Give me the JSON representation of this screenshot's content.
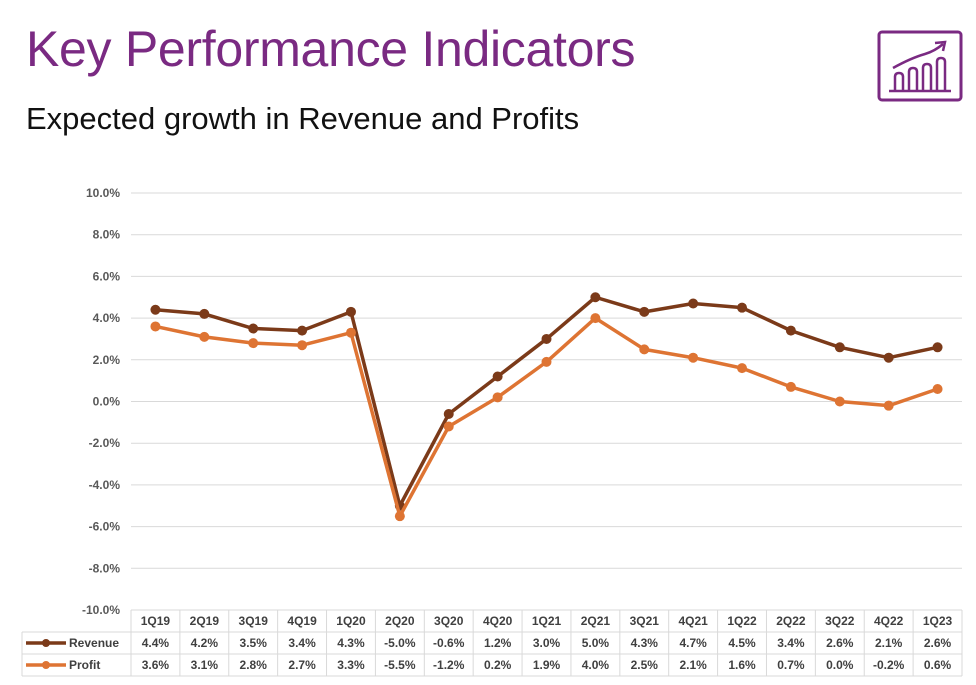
{
  "slide": {
    "title": "Key Performance Indicators",
    "subtitle": "Expected growth in Revenue and Profits",
    "icon": "growth-chart-icon",
    "accent_color": "#7a2a82"
  },
  "chart_data": {
    "type": "line",
    "categories": [
      "1Q19",
      "2Q19",
      "3Q19",
      "4Q19",
      "1Q20",
      "2Q20",
      "3Q20",
      "4Q20",
      "1Q21",
      "2Q21",
      "3Q21",
      "4Q21",
      "1Q22",
      "2Q22",
      "3Q22",
      "4Q22",
      "1Q23"
    ],
    "y_ticks": [
      "10.0%",
      "8.0%",
      "6.0%",
      "4.0%",
      "2.0%",
      "0.0%",
      "-2.0%",
      "-4.0%",
      "-6.0%",
      "-8.0%",
      "-10.0%"
    ],
    "ylim": [
      -10,
      10
    ],
    "grid": true,
    "legend": "data-table",
    "series": [
      {
        "name": "Revenue",
        "color": "#7b3a19",
        "values": [
          4.4,
          4.2,
          3.5,
          3.4,
          4.3,
          -5.0,
          -0.6,
          1.2,
          3.0,
          5.0,
          4.3,
          4.7,
          4.5,
          3.4,
          2.6,
          2.1,
          2.6
        ],
        "labels": [
          "4.4%",
          "4.2%",
          "3.5%",
          "3.4%",
          "4.3%",
          "-5.0%",
          "-0.6%",
          "1.2%",
          "3.0%",
          "5.0%",
          "4.3%",
          "4.7%",
          "4.5%",
          "3.4%",
          "2.6%",
          "2.1%",
          "2.6%"
        ]
      },
      {
        "name": "Profit",
        "color": "#de7433",
        "values": [
          3.6,
          3.1,
          2.8,
          2.7,
          3.3,
          -5.5,
          -1.2,
          0.2,
          1.9,
          4.0,
          2.5,
          2.1,
          1.6,
          0.7,
          0.0,
          -0.2,
          0.6
        ],
        "labels": [
          "3.6%",
          "3.1%",
          "2.8%",
          "2.7%",
          "3.3%",
          "-5.5%",
          "-1.2%",
          "0.2%",
          "1.9%",
          "4.0%",
          "2.5%",
          "2.1%",
          "1.6%",
          "0.7%",
          "0.0%",
          "-0.2%",
          "0.6%"
        ]
      }
    ]
  }
}
